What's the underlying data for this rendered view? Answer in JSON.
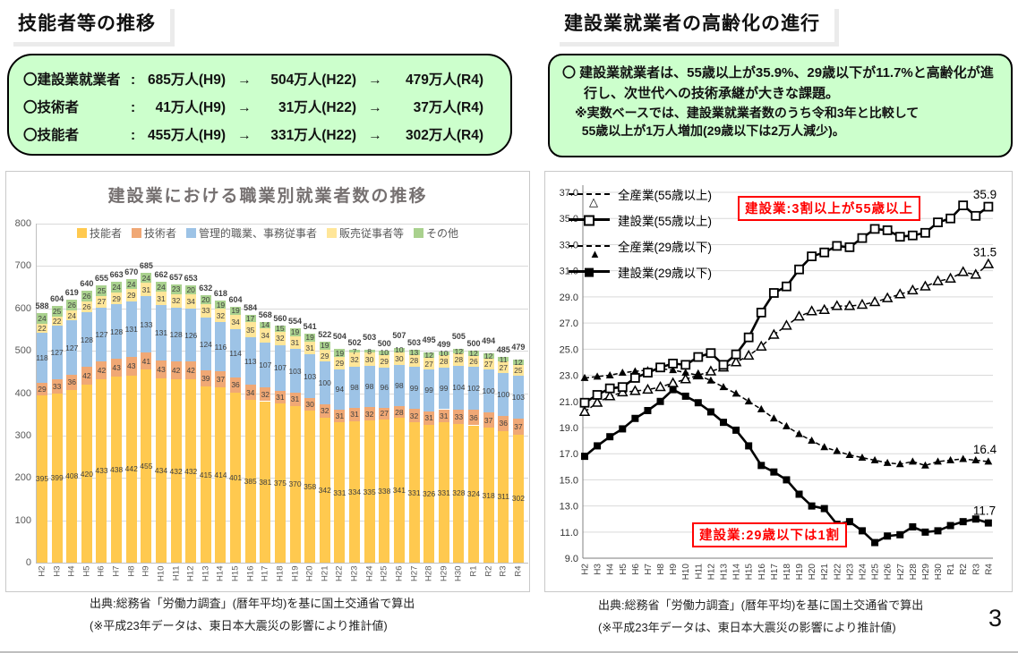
{
  "page": {
    "number": "3"
  },
  "colors": {
    "box_green": "#CCFFCC",
    "accent_red": "#FF0000",
    "bar_skilled": "#FFC94F",
    "bar_engineer": "#F0A875",
    "bar_admin": "#9DC3E6",
    "bar_sales": "#FFE699",
    "bar_other": "#A9D18E"
  },
  "left_section": {
    "title": "技能者等の推移",
    "summary_box": {
      "arrow": "→",
      "rows": [
        {
          "label": "〇建設業就業者",
          "colon": ":",
          "v1": "685万人(H9)",
          "v2": "504万人(H22)",
          "v3": "479万人(R4)"
        },
        {
          "label": "〇技術者",
          "colon": ":",
          "v1": "41万人(H9)",
          "v2": "31万人(H22)",
          "v3": "37万人(R4)"
        },
        {
          "label": "〇技能者",
          "colon": ":",
          "v1": "455万人(H9)",
          "v2": "331万人(H22)",
          "v3": "302万人(R4)"
        }
      ]
    },
    "source_line1": "出典:総務省「労働力調査」(暦年平均)を基に国土交通省で算出",
    "source_line2": "(※平成23年データは、東日本大震災の影響により推計値)"
  },
  "right_section": {
    "title": "建設業就業者の高齢化の進行",
    "summary_box": {
      "line1": "〇 建設業就業者は、55歳以上が35.9%、29歳以下が11.7%と高齢化が進行し、次世代への技術承継が大きな課題。",
      "line2": "※実数ベースでは、建設業就業者数のうち令和3年と比較して",
      "line3": "55歳以上が1万人増加(29歳以下は2万人減少)。"
    },
    "source_line1": "出典:総務省「労働力調査」(暦年平均)を基に国土交通省で算出",
    "source_line2": "(※平成23年データは、東日本大震災の影響により推計値)"
  },
  "chart_data": [
    {
      "type": "bar",
      "stacked": true,
      "title": "建設業における職業別就業者数の推移",
      "xlabel": "",
      "ylabel": "",
      "ylim": [
        0,
        800
      ],
      "y_ticks": [
        0,
        100,
        200,
        300,
        400,
        500,
        600,
        700,
        800
      ],
      "grid": true,
      "legend_position": "top",
      "categories": [
        "H2",
        "H3",
        "H4",
        "H5",
        "H6",
        "H7",
        "H8",
        "H9",
        "H10",
        "H11",
        "H12",
        "H13",
        "H14",
        "H15",
        "H16",
        "H17",
        "H18",
        "H19",
        "H20",
        "H21",
        "H22",
        "H23",
        "H24",
        "H25",
        "H26",
        "H27",
        "H28",
        "H29",
        "H30",
        "R1",
        "R2",
        "R3",
        "R4"
      ],
      "series": [
        {
          "name": "技能者",
          "color": "#FFC94F",
          "values": [
            395,
            399,
            408,
            420,
            433,
            438,
            442,
            455,
            434,
            432,
            432,
            415,
            414,
            401,
            385,
            381,
            375,
            370,
            358,
            342,
            331,
            334,
            335,
            338,
            341,
            331,
            326,
            331,
            328,
            324,
            318,
            311,
            302
          ]
        },
        {
          "name": "技術者",
          "color": "#F0A875",
          "values": [
            29,
            33,
            36,
            42,
            42,
            43,
            43,
            41,
            43,
            42,
            42,
            39,
            37,
            36,
            34,
            32,
            31,
            31,
            30,
            32,
            31,
            31,
            32,
            27,
            28,
            32,
            31,
            31,
            33,
            36,
            37,
            36,
            37
          ]
        },
        {
          "name": "管理的職業、事務従事者",
          "color": "#9DC3E6",
          "values": [
            118,
            127,
            127,
            128,
            127,
            128,
            131,
            133,
            131,
            128,
            126,
            124,
            116,
            114,
            113,
            107,
            107,
            103,
            103,
            100,
            94,
            98,
            98,
            96,
            98,
            99,
            99,
            99,
            104,
            102,
            100,
            100,
            103
          ]
        },
        {
          "name": "販売従事者等",
          "color": "#FFE699",
          "values": [
            22,
            22,
            24,
            26,
            27,
            29,
            29,
            31,
            31,
            32,
            34,
            33,
            32,
            34,
            35,
            34,
            32,
            31,
            31,
            29,
            29,
            32,
            30,
            29,
            30,
            28,
            27,
            28,
            28,
            26,
            27,
            27,
            25
          ]
        },
        {
          "name": "その他",
          "color": "#A9D18E",
          "values": [
            24,
            25,
            26,
            26,
            25,
            24,
            24,
            24,
            24,
            23,
            20,
            20,
            19,
            19,
            17,
            14,
            15,
            19,
            19,
            19,
            19,
            7,
            8,
            10,
            10,
            13,
            12,
            10,
            12,
            12,
            12,
            11,
            12
          ]
        }
      ],
      "totals": [
        588,
        604,
        619,
        640,
        655,
        663,
        670,
        685,
        662,
        657,
        653,
        632,
        618,
        604,
        584,
        568,
        560,
        554,
        541,
        522,
        504,
        502,
        503,
        500,
        507,
        503,
        495,
        499,
        505,
        500,
        494,
        485,
        479
      ]
    },
    {
      "type": "line",
      "title": "",
      "xlabel": "",
      "ylabel": "",
      "ylim": [
        9.0,
        37.0
      ],
      "y_ticks": [
        9,
        11,
        13,
        15,
        17,
        19,
        21,
        23,
        25,
        27,
        29,
        31,
        33,
        35,
        37
      ],
      "grid": true,
      "legend_position": "top-left",
      "categories": [
        "H2",
        "H3",
        "H4",
        "H5",
        "H6",
        "H7",
        "H8",
        "H9",
        "H10",
        "H11",
        "H12",
        "H13",
        "H14",
        "H15",
        "H16",
        "H17",
        "H18",
        "H19",
        "H20",
        "H21",
        "H22",
        "H23",
        "H24",
        "H25",
        "H26",
        "H27",
        "H28",
        "H29",
        "H30",
        "R1",
        "R2",
        "R3",
        "R4"
      ],
      "series": [
        {
          "name": "全産業(55歳以上)",
          "line": "dashed",
          "marker": "triangle-open",
          "end_label": "31.5",
          "values": [
            20.2,
            20.9,
            21.4,
            21.7,
            21.8,
            21.9,
            22.1,
            22.4,
            22.7,
            23.0,
            23.3,
            23.6,
            24.0,
            24.5,
            25.2,
            26.1,
            26.8,
            27.5,
            27.9,
            28.0,
            28.3,
            28.3,
            28.4,
            28.6,
            28.9,
            29.2,
            29.5,
            29.8,
            30.2,
            30.4,
            30.9,
            30.7,
            31.5
          ]
        },
        {
          "name": "建設業(55歳以上)",
          "line": "solid",
          "marker": "square-open",
          "end_label": "35.9",
          "values": [
            20.9,
            21.5,
            22.0,
            22.1,
            22.8,
            23.2,
            23.6,
            23.9,
            23.8,
            24.4,
            24.7,
            23.8,
            24.6,
            25.9,
            27.8,
            29.3,
            29.8,
            31.1,
            32.1,
            32.4,
            32.9,
            32.8,
            33.5,
            34.2,
            34.1,
            33.6,
            33.7,
            33.9,
            34.7,
            35.0,
            36.0,
            35.2,
            35.9
          ]
        },
        {
          "name": "全産業(29歳以下)",
          "line": "dashed",
          "marker": "triangle-filled",
          "end_label": "16.4",
          "values": [
            22.8,
            22.9,
            23.0,
            23.2,
            23.3,
            23.4,
            23.5,
            23.4,
            23.2,
            23.0,
            22.6,
            22.1,
            21.6,
            21.0,
            20.4,
            19.7,
            19.1,
            18.5,
            18.0,
            17.5,
            17.2,
            16.9,
            16.7,
            16.5,
            16.3,
            16.2,
            16.4,
            16.1,
            16.4,
            16.5,
            16.6,
            16.5,
            16.4
          ]
        },
        {
          "name": "建設業(29歳以下)",
          "line": "solid",
          "marker": "square-filled",
          "end_label": "11.7",
          "values": [
            16.8,
            17.6,
            18.3,
            18.9,
            19.7,
            20.3,
            21.0,
            21.9,
            21.4,
            20.9,
            20.2,
            19.4,
            18.8,
            17.6,
            16.1,
            15.6,
            15.0,
            13.9,
            13.0,
            12.8,
            11.6,
            11.8,
            11.1,
            10.2,
            10.7,
            10.8,
            11.4,
            11.0,
            11.1,
            11.5,
            11.8,
            12.0,
            11.7
          ]
        }
      ],
      "annotations": [
        {
          "text": "建設業:3割以上が55歳以上"
        },
        {
          "text": "建設業:29歳以下は1割"
        }
      ]
    }
  ]
}
